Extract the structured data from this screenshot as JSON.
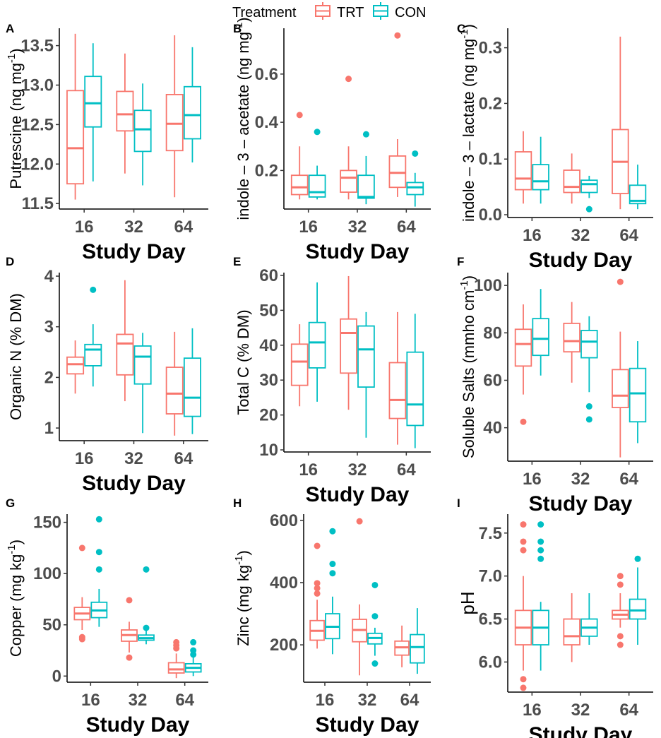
{
  "legend": {
    "title": "Treatment",
    "entries": [
      {
        "name": "TRT",
        "color": "#F8766D"
      },
      {
        "name": "CON",
        "color": "#00BFC4"
      }
    ]
  },
  "chart_data": [
    {
      "tag": "A",
      "type": "box",
      "ylabel": "Putrescine (ng mg",
      "unit_sup": "-1",
      "unit_close": ")",
      "xlabel": "Study Day",
      "categories": [
        "16",
        "32",
        "64"
      ],
      "ylim": [
        11.43,
        13.72
      ],
      "yticks": [
        "11.5",
        "12.0",
        "12.5",
        "13.0",
        "13.5"
      ],
      "ytick_values": [
        11.5,
        12.0,
        12.5,
        13.0,
        13.5
      ],
      "series": [
        {
          "name": "TRT",
          "boxes": [
            {
              "low": 11.55,
              "q1": 11.75,
              "median": 12.2,
              "q3": 12.93,
              "high": 13.65,
              "outliers": []
            },
            {
              "low": 11.88,
              "q1": 12.42,
              "median": 12.63,
              "q3": 12.92,
              "high": 13.4,
              "outliers": []
            },
            {
              "low": 11.58,
              "q1": 12.17,
              "median": 12.51,
              "q3": 12.88,
              "high": 13.63,
              "outliers": []
            }
          ]
        },
        {
          "name": "CON",
          "boxes": [
            {
              "low": 11.78,
              "q1": 12.47,
              "median": 12.77,
              "q3": 13.11,
              "high": 13.53,
              "outliers": []
            },
            {
              "low": 11.73,
              "q1": 12.16,
              "median": 12.44,
              "q3": 12.68,
              "high": 13.02,
              "outliers": []
            },
            {
              "low": 12.02,
              "q1": 12.32,
              "median": 12.62,
              "q3": 12.98,
              "high": 13.48,
              "outliers": []
            }
          ]
        }
      ]
    },
    {
      "tag": "B",
      "type": "box",
      "ylabel": "indole – 3 – acetate (ng mg",
      "unit_sup": "-1",
      "unit_close": ")",
      "xlabel": "Study Day",
      "categories": [
        "16",
        "32",
        "64"
      ],
      "ylim": [
        0.04,
        0.79
      ],
      "yticks": [
        "0.2",
        "0.4",
        "0.6"
      ],
      "ytick_values": [
        0.2,
        0.4,
        0.6
      ],
      "series": [
        {
          "name": "TRT",
          "boxes": [
            {
              "low": 0.08,
              "q1": 0.1,
              "median": 0.13,
              "q3": 0.18,
              "high": 0.3,
              "outliers": [
                0.43
              ]
            },
            {
              "low": 0.08,
              "q1": 0.11,
              "median": 0.17,
              "q3": 0.2,
              "high": 0.3,
              "outliers": [
                0.58
              ]
            },
            {
              "low": 0.09,
              "q1": 0.13,
              "median": 0.19,
              "q3": 0.26,
              "high": 0.33,
              "outliers": [
                0.76
              ]
            }
          ]
        },
        {
          "name": "CON",
          "boxes": [
            {
              "low": 0.08,
              "q1": 0.09,
              "median": 0.11,
              "q3": 0.18,
              "high": 0.22,
              "outliers": [
                0.36
              ]
            },
            {
              "low": 0.06,
              "q1": 0.085,
              "median": 0.09,
              "q3": 0.18,
              "high": 0.26,
              "outliers": [
                0.35
              ]
            },
            {
              "low": 0.05,
              "q1": 0.1,
              "median": 0.13,
              "q3": 0.15,
              "high": 0.19,
              "outliers": [
                0.27
              ]
            }
          ]
        }
      ]
    },
    {
      "tag": "C",
      "type": "box",
      "ylabel": "indole – 3 – lactate (ng mg",
      "unit_sup": "-1",
      "unit_close": ")",
      "xlabel": "Study Day",
      "categories": [
        "16",
        "32",
        "64"
      ],
      "ylim": [
        -0.005,
        0.335
      ],
      "yticks": [
        "0.0",
        "0.1",
        "0.2",
        "0.3"
      ],
      "ytick_values": [
        0.0,
        0.1,
        0.2,
        0.3
      ],
      "series": [
        {
          "name": "TRT",
          "boxes": [
            {
              "low": 0.02,
              "q1": 0.045,
              "median": 0.065,
              "q3": 0.113,
              "high": 0.15,
              "outliers": []
            },
            {
              "low": 0.02,
              "q1": 0.04,
              "median": 0.05,
              "q3": 0.08,
              "high": 0.11,
              "outliers": []
            },
            {
              "low": 0.01,
              "q1": 0.038,
              "median": 0.095,
              "q3": 0.153,
              "high": 0.32,
              "outliers": []
            }
          ]
        },
        {
          "name": "CON",
          "boxes": [
            {
              "low": 0.02,
              "q1": 0.045,
              "median": 0.06,
              "q3": 0.09,
              "high": 0.14,
              "outliers": []
            },
            {
              "low": 0.03,
              "q1": 0.04,
              "median": 0.055,
              "q3": 0.062,
              "high": 0.07,
              "outliers": [
                0.01
              ]
            },
            {
              "low": 0.01,
              "q1": 0.02,
              "median": 0.025,
              "q3": 0.053,
              "high": 0.09,
              "outliers": []
            }
          ]
        }
      ]
    },
    {
      "tag": "D",
      "type": "box",
      "ylabel": "Organic N (% DM)",
      "unit_sup": "",
      "unit_close": "",
      "xlabel": "Study Day",
      "categories": [
        "16",
        "32",
        "64"
      ],
      "ylim": [
        0.75,
        4.07
      ],
      "yticks": [
        "1",
        "2",
        "3",
        "4"
      ],
      "ytick_values": [
        1,
        2,
        3,
        4
      ],
      "series": [
        {
          "name": "TRT",
          "boxes": [
            {
              "low": 1.68,
              "q1": 2.07,
              "median": 2.26,
              "q3": 2.4,
              "high": 2.73,
              "outliers": []
            },
            {
              "low": 1.53,
              "q1": 2.05,
              "median": 2.67,
              "q3": 2.85,
              "high": 3.92,
              "outliers": []
            },
            {
              "low": 0.85,
              "q1": 1.28,
              "median": 1.68,
              "q3": 2.2,
              "high": 2.9,
              "outliers": []
            }
          ]
        },
        {
          "name": "CON",
          "boxes": [
            {
              "low": 1.82,
              "q1": 2.23,
              "median": 2.55,
              "q3": 2.65,
              "high": 3.05,
              "outliers": [
                3.73
              ]
            },
            {
              "low": 0.9,
              "q1": 1.87,
              "median": 2.41,
              "q3": 2.62,
              "high": 2.88,
              "outliers": []
            },
            {
              "low": 0.88,
              "q1": 1.23,
              "median": 1.6,
              "q3": 2.38,
              "high": 2.97,
              "outliers": []
            }
          ]
        }
      ]
    },
    {
      "tag": "E",
      "type": "box",
      "ylabel": "Total C (% DM)",
      "unit_sup": "",
      "unit_close": "",
      "xlabel": "Study Day",
      "categories": [
        "16",
        "32",
        "64"
      ],
      "ylim": [
        9.4,
        60.8
      ],
      "yticks": [
        "10",
        "20",
        "30",
        "40",
        "50",
        "60"
      ],
      "ytick_values": [
        10,
        20,
        30,
        40,
        50,
        60
      ],
      "series": [
        {
          "name": "TRT",
          "boxes": [
            {
              "low": 22.5,
              "q1": 28.5,
              "median": 35.3,
              "q3": 40.3,
              "high": 46,
              "outliers": []
            },
            {
              "low": 21.5,
              "q1": 32,
              "median": 43.5,
              "q3": 47.5,
              "high": 59.8,
              "outliers": []
            },
            {
              "low": 11.5,
              "q1": 19,
              "median": 24.3,
              "q3": 35,
              "high": 49.5,
              "outliers": []
            }
          ]
        },
        {
          "name": "CON",
          "boxes": [
            {
              "low": 23.8,
              "q1": 33.5,
              "median": 40.8,
              "q3": 46.5,
              "high": 58,
              "outliers": []
            },
            {
              "low": 13.5,
              "q1": 28,
              "median": 38.8,
              "q3": 45.5,
              "high": 49.5,
              "outliers": []
            },
            {
              "low": 10.5,
              "q1": 17,
              "median": 23,
              "q3": 38,
              "high": 49,
              "outliers": []
            }
          ]
        }
      ]
    },
    {
      "tag": "F",
      "type": "box",
      "ylabel": "Soluble Salts (mmho cm",
      "unit_sup": "-1",
      "unit_close": ")",
      "xlabel": "Study Day",
      "categories": [
        "16",
        "32",
        "64"
      ],
      "ylim": [
        25.9,
        105.4
      ],
      "yticks": [
        "40",
        "60",
        "80",
        "100"
      ],
      "ytick_values": [
        40,
        60,
        80,
        100
      ],
      "series": [
        {
          "name": "TRT",
          "boxes": [
            {
              "low": 54,
              "q1": 66,
              "median": 75.3,
              "q3": 81.5,
              "high": 92,
              "outliers": [
                42.5
              ]
            },
            {
              "low": 59,
              "q1": 72,
              "median": 76.5,
              "q3": 84,
              "high": 93,
              "outliers": []
            },
            {
              "low": 27.5,
              "q1": 48.5,
              "median": 53.5,
              "q3": 64.5,
              "high": 80.5,
              "outliers": [
                101.5
              ]
            }
          ]
        },
        {
          "name": "CON",
          "boxes": [
            {
              "low": 62,
              "q1": 70.5,
              "median": 77.5,
              "q3": 86,
              "high": 98.5,
              "outliers": []
            },
            {
              "low": 55,
              "q1": 69.5,
              "median": 76.3,
              "q3": 81,
              "high": 87,
              "outliers": [
                49,
                43.5
              ]
            },
            {
              "low": 33.5,
              "q1": 42.5,
              "median": 54.5,
              "q3": 65,
              "high": 76.5,
              "outliers": []
            }
          ]
        }
      ]
    },
    {
      "tag": "G",
      "type": "box",
      "ylabel": "Copper (mg kg",
      "unit_sup": "-1",
      "unit_close": ")",
      "xlabel": "Study Day",
      "categories": [
        "16",
        "32",
        "64"
      ],
      "ylim": [
        -6,
        158
      ],
      "yticks": [
        "0",
        "50",
        "100",
        "150"
      ],
      "ytick_values": [
        0,
        50,
        100,
        150
      ],
      "series": [
        {
          "name": "TRT",
          "boxes": [
            {
              "low": 45,
              "q1": 55,
              "median": 61,
              "q3": 67,
              "high": 77,
              "outliers": [
                125,
                38,
                36
              ]
            },
            {
              "low": 23,
              "q1": 34,
              "median": 40,
              "q3": 45,
              "high": 53,
              "outliers": [
                74,
                18
              ]
            },
            {
              "low": -2,
              "q1": 3,
              "median": 6.5,
              "q3": 13,
              "high": 22,
              "outliers": [
                33,
                30,
                27
              ]
            }
          ]
        },
        {
          "name": "CON",
          "boxes": [
            {
              "low": 48,
              "q1": 57,
              "median": 64,
              "q3": 72,
              "high": 85,
              "outliers": [
                153,
                121,
                104
              ]
            },
            {
              "low": 31,
              "q1": 35,
              "median": 37,
              "q3": 40,
              "high": 44,
              "outliers": [
                104,
                47
              ]
            },
            {
              "low": 0,
              "q1": 4,
              "median": 8,
              "q3": 12,
              "high": 20,
              "outliers": [
                33,
                25,
                21
              ]
            }
          ]
        }
      ]
    },
    {
      "tag": "H",
      "type": "box",
      "ylabel": "Zinc (mg kg",
      "unit_sup": "-1",
      "unit_close": ")",
      "xlabel": "Study Day",
      "categories": [
        "16",
        "32",
        "64"
      ],
      "ylim": [
        80,
        620
      ],
      "yticks": [
        "200",
        "400",
        "600"
      ],
      "ytick_values": [
        200,
        400,
        600
      ],
      "series": [
        {
          "name": "TRT",
          "boxes": [
            {
              "low": 188,
              "q1": 215,
              "median": 245,
              "q3": 278,
              "high": 345,
              "outliers": [
                518,
                398,
                382,
                365
              ]
            },
            {
              "low": 102,
              "q1": 210,
              "median": 248,
              "q3": 282,
              "high": 330,
              "outliers": [
                597
              ]
            },
            {
              "low": 128,
              "q1": 167,
              "median": 192,
              "q3": 212,
              "high": 262,
              "outliers": []
            }
          ]
        },
        {
          "name": "CON",
          "boxes": [
            {
              "low": 170,
              "q1": 220,
              "median": 258,
              "q3": 300,
              "high": 355,
              "outliers": [
                565,
                460,
                430
              ]
            },
            {
              "low": 165,
              "q1": 203,
              "median": 222,
              "q3": 237,
              "high": 255,
              "outliers": [
                392,
                292,
                140
              ]
            },
            {
              "low": 107,
              "q1": 142,
              "median": 193,
              "q3": 233,
              "high": 318,
              "outliers": []
            }
          ]
        }
      ]
    },
    {
      "tag": "I",
      "type": "box",
      "ylabel": "pH",
      "unit_sup": "",
      "unit_close": "",
      "xlabel": "Study Day",
      "categories": [
        "16",
        "32",
        "64"
      ],
      "ylim": [
        5.65,
        7.72
      ],
      "yticks": [
        "6.0",
        "6.5",
        "7.0",
        "7.5"
      ],
      "ytick_values": [
        6.0,
        6.5,
        7.0,
        7.5
      ],
      "series": [
        {
          "name": "TRT",
          "boxes": [
            {
              "low": 5.9,
              "q1": 6.2,
              "median": 6.4,
              "q3": 6.6,
              "high": 7.0,
              "outliers": [
                7.6,
                7.4,
                7.3,
                5.8,
                5.7
              ]
            },
            {
              "low": 6.0,
              "q1": 6.2,
              "median": 6.3,
              "q3": 6.5,
              "high": 6.8,
              "outliers": []
            },
            {
              "low": 6.4,
              "q1": 6.5,
              "median": 6.55,
              "q3": 6.6,
              "high": 6.8,
              "outliers": [
                7.0,
                6.9,
                6.3,
                6.2
              ]
            }
          ]
        },
        {
          "name": "CON",
          "boxes": [
            {
              "low": 5.9,
              "q1": 6.2,
              "median": 6.4,
              "q3": 6.6,
              "high": 6.7,
              "outliers": [
                7.6,
                7.4,
                7.3,
                7.2
              ]
            },
            {
              "low": 6.2,
              "q1": 6.3,
              "median": 6.4,
              "q3": 6.5,
              "high": 6.8,
              "outliers": []
            },
            {
              "low": 6.2,
              "q1": 6.5,
              "median": 6.6,
              "q3": 6.73,
              "high": 7.1,
              "outliers": [
                7.2
              ]
            }
          ]
        }
      ]
    }
  ]
}
